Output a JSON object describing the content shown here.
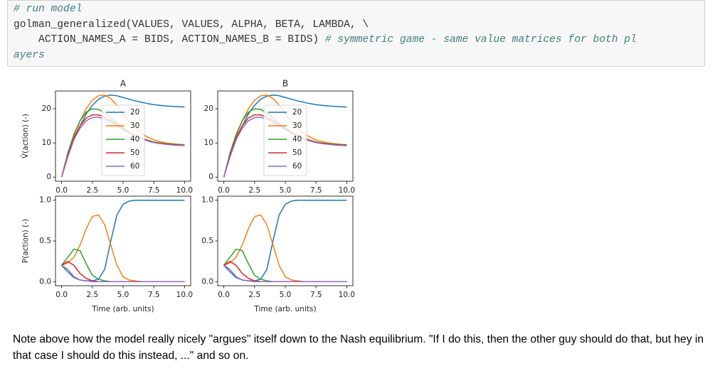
{
  "code": {
    "lines": [
      [
        "# run model"
      ],
      [
        "golman_generalized(VALUES, VALUES, ALPHA, BETA, LAMBDA, \\"
      ],
      [
        "    ACTION_NAMES_A = BIDS, ACTION_NAMES_B = BIDS) ",
        "# symmetric game - same value matrices for both pl"
      ],
      [
        "ayers"
      ]
    ]
  },
  "chart_data": [
    {
      "type": "line",
      "title": "A",
      "ylabel": "V̂(action) (-)",
      "legend": "center",
      "x": [
        0,
        0.5,
        1,
        1.5,
        2,
        2.5,
        3,
        3.5,
        4,
        4.5,
        5,
        5.5,
        6,
        6.5,
        7,
        7.5,
        8,
        8.5,
        9,
        9.5,
        10
      ],
      "xlim": [
        -0.5,
        10.5
      ],
      "ylim": [
        -1.2,
        25.2
      ],
      "xticks": [
        {
          "value": 0,
          "label": "0.0"
        },
        {
          "value": 2.5,
          "label": "2.5"
        },
        {
          "value": 5,
          "label": "5.0"
        },
        {
          "value": 7.5,
          "label": "7.5"
        },
        {
          "value": 10,
          "label": "10.0"
        }
      ],
      "yticks": [
        0,
        10,
        20
      ],
      "series": [
        {
          "name": "20",
          "color": "#1f77b4",
          "values": [
            0,
            6,
            11,
            15,
            18.5,
            21,
            22.8,
            23.7,
            24,
            23.8,
            23.3,
            22.8,
            22.3,
            21.9,
            21.5,
            21.2,
            21,
            20.8,
            20.7,
            20.6,
            20.5
          ]
        },
        {
          "name": "30",
          "color": "#ff7f0e",
          "values": [
            0,
            6.5,
            12,
            16.5,
            20,
            22.5,
            23.8,
            24,
            23,
            21,
            18.5,
            16.2,
            14.3,
            12.8,
            11.7,
            10.9,
            10.4,
            10,
            9.8,
            9.6,
            9.5
          ]
        },
        {
          "name": "40",
          "color": "#2ca02c",
          "values": [
            0,
            7,
            12.5,
            16.5,
            19,
            20,
            19.8,
            18.8,
            17.3,
            15.8,
            14.4,
            13.2,
            12.2,
            11.4,
            10.8,
            10.3,
            10,
            9.8,
            9.6,
            9.5,
            9.4
          ]
        },
        {
          "name": "50",
          "color": "#d62728",
          "values": [
            0,
            6.5,
            11.5,
            15,
            17.3,
            18.2,
            18.2,
            17.5,
            16.5,
            15.3,
            14.1,
            13,
            12.1,
            11.3,
            10.7,
            10.2,
            9.9,
            9.7,
            9.5,
            9.4,
            9.3
          ]
        },
        {
          "name": "60",
          "color": "#9467bd",
          "values": [
            0,
            6,
            11,
            14.3,
            16.5,
            17.4,
            17.5,
            17,
            16.1,
            15,
            13.9,
            12.9,
            12,
            11.2,
            10.6,
            10.1,
            9.8,
            9.6,
            9.4,
            9.3,
            9.2
          ]
        }
      ]
    },
    {
      "type": "line",
      "title": "B",
      "legend": "center",
      "x": [
        0,
        0.5,
        1,
        1.5,
        2,
        2.5,
        3,
        3.5,
        4,
        4.5,
        5,
        5.5,
        6,
        6.5,
        7,
        7.5,
        8,
        8.5,
        9,
        9.5,
        10
      ],
      "xlim": [
        -0.5,
        10.5
      ],
      "ylim": [
        -1.2,
        25.2
      ],
      "xticks": [
        {
          "value": 0,
          "label": "0.0"
        },
        {
          "value": 2.5,
          "label": "2.5"
        },
        {
          "value": 5,
          "label": "5.0"
        },
        {
          "value": 7.5,
          "label": "7.5"
        },
        {
          "value": 10,
          "label": "10.0"
        }
      ],
      "yticks": [
        0,
        10,
        20
      ],
      "series": [
        {
          "name": "20",
          "color": "#1f77b4",
          "values": [
            0,
            6,
            11,
            15,
            18.5,
            21,
            22.8,
            23.7,
            24,
            23.8,
            23.3,
            22.8,
            22.3,
            21.9,
            21.5,
            21.2,
            21,
            20.8,
            20.7,
            20.6,
            20.5
          ]
        },
        {
          "name": "30",
          "color": "#ff7f0e",
          "values": [
            0,
            6.5,
            12,
            16.5,
            20,
            22.5,
            23.8,
            24,
            23,
            21,
            18.5,
            16.2,
            14.3,
            12.8,
            11.7,
            10.9,
            10.4,
            10,
            9.8,
            9.6,
            9.5
          ]
        },
        {
          "name": "40",
          "color": "#2ca02c",
          "values": [
            0,
            7,
            12.5,
            16.5,
            19,
            20,
            19.8,
            18.8,
            17.3,
            15.8,
            14.4,
            13.2,
            12.2,
            11.4,
            10.8,
            10.3,
            10,
            9.8,
            9.6,
            9.5,
            9.4
          ]
        },
        {
          "name": "50",
          "color": "#d62728",
          "values": [
            0,
            6.5,
            11.5,
            15,
            17.3,
            18.2,
            18.2,
            17.5,
            16.5,
            15.3,
            14.1,
            13,
            12.1,
            11.3,
            10.7,
            10.2,
            9.9,
            9.7,
            9.5,
            9.4,
            9.3
          ]
        },
        {
          "name": "60",
          "color": "#9467bd",
          "values": [
            0,
            6,
            11,
            14.3,
            16.5,
            17.4,
            17.5,
            17,
            16.1,
            15,
            13.9,
            12.9,
            12,
            11.2,
            10.6,
            10.1,
            9.8,
            9.6,
            9.4,
            9.3,
            9.2
          ]
        }
      ]
    },
    {
      "type": "line",
      "ylabel": "P(action) (-)",
      "xlabel": "Time (arb. units)",
      "x": [
        0,
        0.5,
        1,
        1.5,
        2,
        2.5,
        3,
        3.5,
        4,
        4.5,
        5,
        5.5,
        6,
        6.5,
        7,
        7.5,
        8,
        8.5,
        9,
        9.5,
        10
      ],
      "xlim": [
        -0.5,
        10.5
      ],
      "ylim": [
        -0.05,
        1.05
      ],
      "xticks": [
        {
          "value": 0,
          "label": "0.0"
        },
        {
          "value": 2.5,
          "label": "2.5"
        },
        {
          "value": 5,
          "label": "5.0"
        },
        {
          "value": 7.5,
          "label": "7.5"
        },
        {
          "value": 10,
          "label": "10.0"
        }
      ],
      "yticks": [
        {
          "value": 0,
          "label": "0.0"
        },
        {
          "value": 0.5,
          "label": "0.5"
        },
        {
          "value": 1,
          "label": "1.0"
        }
      ],
      "series": [
        {
          "name": "20",
          "color": "#1f77b4",
          "values": [
            0.2,
            0.12,
            0.05,
            0.02,
            0.01,
            0.01,
            0.03,
            0.15,
            0.5,
            0.82,
            0.95,
            0.99,
            1,
            1,
            1,
            1,
            1,
            1,
            1,
            1,
            1
          ]
        },
        {
          "name": "30",
          "color": "#ff7f0e",
          "values": [
            0.2,
            0.23,
            0.3,
            0.45,
            0.65,
            0.8,
            0.82,
            0.7,
            0.45,
            0.2,
            0.06,
            0.02,
            0.01,
            0,
            0,
            0,
            0,
            0,
            0,
            0,
            0
          ]
        },
        {
          "name": "40",
          "color": "#2ca02c",
          "values": [
            0.2,
            0.3,
            0.4,
            0.38,
            0.22,
            0.08,
            0.03,
            0.01,
            0,
            0,
            0,
            0,
            0,
            0,
            0,
            0,
            0,
            0,
            0,
            0,
            0
          ]
        },
        {
          "name": "50",
          "color": "#d62728",
          "values": [
            0.2,
            0.25,
            0.2,
            0.1,
            0.04,
            0.01,
            0,
            0,
            0,
            0,
            0,
            0,
            0,
            0,
            0,
            0,
            0,
            0,
            0,
            0,
            0
          ]
        },
        {
          "name": "60",
          "color": "#9467bd",
          "values": [
            0.2,
            0.15,
            0.06,
            0.02,
            0.01,
            0,
            0,
            0,
            0,
            0,
            0,
            0,
            0,
            0,
            0,
            0,
            0,
            0,
            0,
            0,
            0
          ]
        }
      ]
    },
    {
      "type": "line",
      "xlabel": "Time (arb. units)",
      "x": [
        0,
        0.5,
        1,
        1.5,
        2,
        2.5,
        3,
        3.5,
        4,
        4.5,
        5,
        5.5,
        6,
        6.5,
        7,
        7.5,
        8,
        8.5,
        9,
        9.5,
        10
      ],
      "xlim": [
        -0.5,
        10.5
      ],
      "ylim": [
        -0.05,
        1.05
      ],
      "xticks": [
        {
          "value": 0,
          "label": "0.0"
        },
        {
          "value": 2.5,
          "label": "2.5"
        },
        {
          "value": 5,
          "label": "5.0"
        },
        {
          "value": 7.5,
          "label": "7.5"
        },
        {
          "value": 10,
          "label": "10.0"
        }
      ],
      "yticks": [
        {
          "value": 0,
          "label": "0.0"
        },
        {
          "value": 0.5,
          "label": "0.5"
        },
        {
          "value": 1,
          "label": "1.0"
        }
      ],
      "series": [
        {
          "name": "20",
          "color": "#1f77b4",
          "values": [
            0.2,
            0.12,
            0.05,
            0.02,
            0.01,
            0.01,
            0.03,
            0.15,
            0.5,
            0.82,
            0.95,
            0.99,
            1,
            1,
            1,
            1,
            1,
            1,
            1,
            1,
            1
          ]
        },
        {
          "name": "30",
          "color": "#ff7f0e",
          "values": [
            0.2,
            0.23,
            0.3,
            0.45,
            0.65,
            0.8,
            0.82,
            0.7,
            0.45,
            0.2,
            0.06,
            0.02,
            0.01,
            0,
            0,
            0,
            0,
            0,
            0,
            0,
            0
          ]
        },
        {
          "name": "40",
          "color": "#2ca02c",
          "values": [
            0.2,
            0.3,
            0.4,
            0.38,
            0.22,
            0.08,
            0.03,
            0.01,
            0,
            0,
            0,
            0,
            0,
            0,
            0,
            0,
            0,
            0,
            0,
            0,
            0
          ]
        },
        {
          "name": "50",
          "color": "#d62728",
          "values": [
            0.2,
            0.25,
            0.2,
            0.1,
            0.04,
            0.01,
            0,
            0,
            0,
            0,
            0,
            0,
            0,
            0,
            0,
            0,
            0,
            0,
            0,
            0,
            0
          ]
        },
        {
          "name": "60",
          "color": "#9467bd",
          "values": [
            0.2,
            0.15,
            0.06,
            0.02,
            0.01,
            0,
            0,
            0,
            0,
            0,
            0,
            0,
            0,
            0,
            0,
            0,
            0,
            0,
            0,
            0,
            0
          ]
        }
      ]
    }
  ],
  "markdown": {
    "text": "Note above how the model really nicely \"argues\" itself down to the Nash equilibrium. \"If I do this, then the other guy should do that, but hey in that case I should do this instead, ...\" and so on."
  }
}
